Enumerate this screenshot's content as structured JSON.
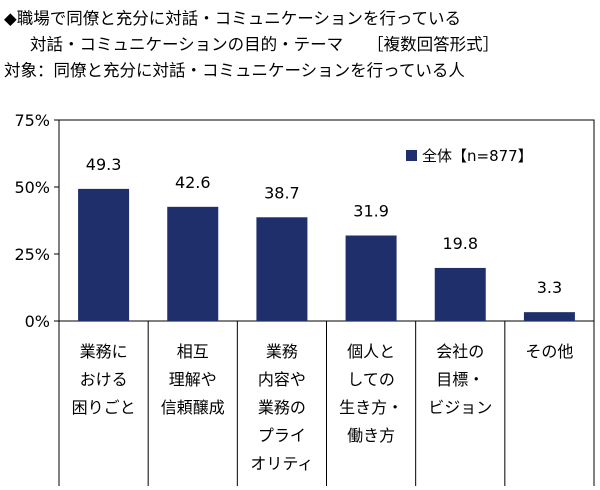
{
  "title": {
    "line1": "◆職場で同僚と充分に対話・コミュニケーションを行っている",
    "line2": "対話・コミュニケーションの目的・テーマ",
    "line2_tag": "［複数回答形式］",
    "line3": "対象：同僚と充分に対話・コミュニケーションを行っている人"
  },
  "chart_data": {
    "type": "bar",
    "ylim": [
      0,
      75
    ],
    "yticks": [
      0,
      25,
      50,
      75
    ],
    "ytick_labels": [
      "0%",
      "25%",
      "50%",
      "75%"
    ],
    "categories": [
      [
        "業務に",
        "おける",
        "困りごと"
      ],
      [
        "相互",
        "理解や",
        "信頼醸成"
      ],
      [
        "業務",
        "内容や",
        "業務の",
        "プライ",
        "オリティ"
      ],
      [
        "個人と",
        "しての",
        "生き方・",
        "働き方"
      ],
      [
        "会社の",
        "目標・",
        "ビジョン"
      ],
      [
        "その他"
      ]
    ],
    "series": [
      {
        "name": "全体【n=877】",
        "values": [
          49.3,
          42.6,
          38.7,
          31.9,
          19.8,
          3.3
        ],
        "value_labels": [
          "49.3",
          "42.6",
          "38.7",
          "31.9",
          "19.8",
          "3.3"
        ],
        "color": "#1f2f6b"
      }
    ],
    "legend_position": "top-right",
    "grid": false
  }
}
